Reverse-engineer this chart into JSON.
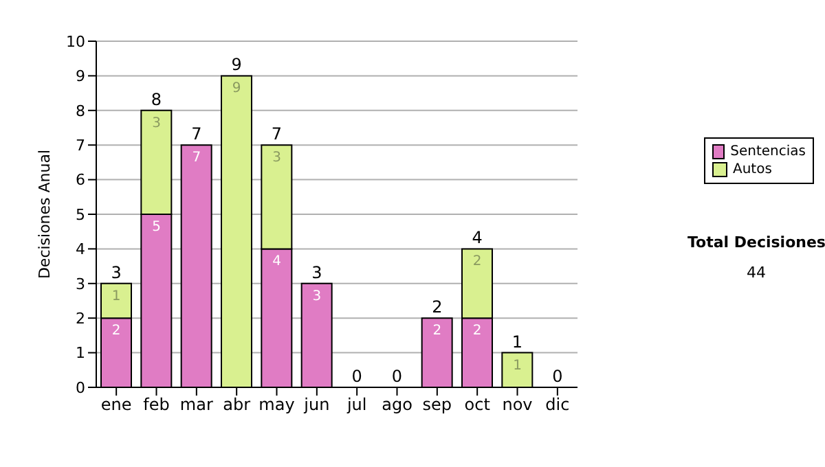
{
  "chart_data": {
    "type": "bar",
    "stacked": true,
    "ylabel": "Decisiones Anual",
    "categories": [
      "ene",
      "feb",
      "mar",
      "abr",
      "may",
      "jun",
      "jul",
      "ago",
      "sep",
      "oct",
      "nov",
      "dic"
    ],
    "series": [
      {
        "name": "Sentencias",
        "color": "#e07cc4",
        "values": [
          2,
          5,
          7,
          0,
          4,
          3,
          0,
          0,
          2,
          2,
          0,
          0
        ],
        "value_labels": [
          "2",
          "5",
          "7",
          null,
          "4",
          "3",
          null,
          null,
          "2",
          "2",
          null,
          null
        ]
      },
      {
        "name": "Autos",
        "color": "#d9f090",
        "values": [
          1,
          3,
          0,
          9,
          3,
          0,
          0,
          0,
          0,
          2,
          1,
          0
        ],
        "value_labels": [
          "1",
          "3",
          null,
          "9",
          "3",
          null,
          null,
          null,
          null,
          "2",
          "1",
          null
        ]
      }
    ],
    "totals": [
      "3",
      "8",
      "7",
      "9",
      "7",
      "3",
      "0",
      "0",
      "2",
      "4",
      "1",
      "0"
    ],
    "ylim": [
      0,
      10
    ],
    "yticks": [
      0,
      1,
      2,
      3,
      4,
      5,
      6,
      7,
      8,
      9,
      10
    ],
    "grid": "y",
    "legend": "right",
    "annotations": [
      "Total Decisiones",
      "44"
    ]
  }
}
